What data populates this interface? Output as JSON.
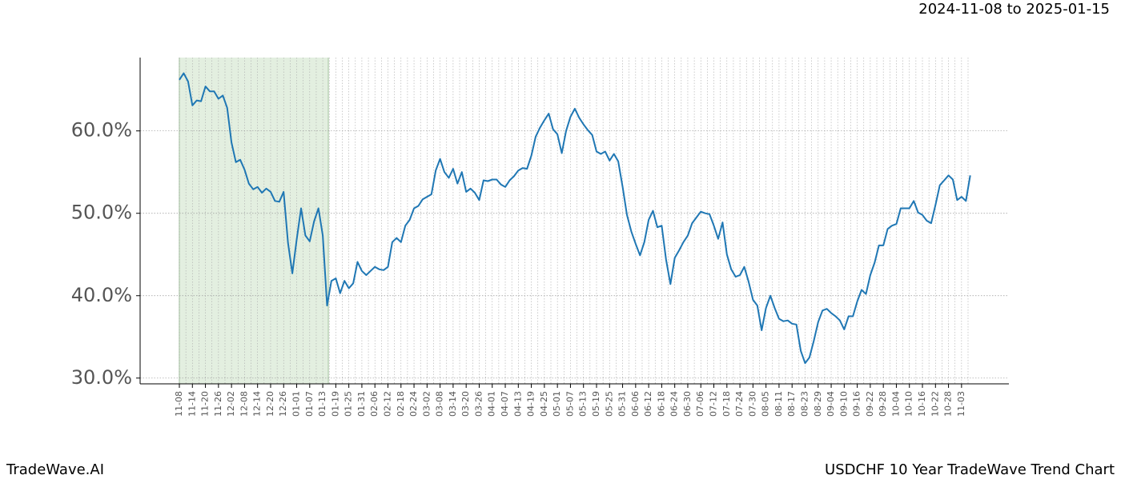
{
  "chart_data": {
    "type": "line",
    "date_range": "2024-11-08 to 2025-01-15",
    "brand": "TradeWave.AI",
    "title": "USDCHF 10 Year TradeWave Trend Chart",
    "categories": [
      "11-08",
      null,
      null,
      "11-14",
      null,
      null,
      "11-20",
      null,
      null,
      "11-26",
      null,
      null,
      "12-02",
      null,
      null,
      "12-08",
      null,
      null,
      "12-14",
      null,
      null,
      "12-20",
      null,
      null,
      "12-26",
      null,
      null,
      "01-01",
      null,
      null,
      "01-07",
      null,
      null,
      "01-13",
      null,
      null,
      "01-19",
      null,
      null,
      "01-25",
      null,
      null,
      "01-31",
      null,
      null,
      "02-06",
      null,
      null,
      "02-12",
      null,
      null,
      "02-18",
      null,
      null,
      "02-24",
      null,
      null,
      "03-02",
      null,
      null,
      "03-08",
      null,
      null,
      "03-14",
      null,
      null,
      "03-20",
      null,
      null,
      "03-26",
      null,
      null,
      "04-01",
      null,
      null,
      "04-07",
      null,
      null,
      "04-13",
      null,
      null,
      "04-19",
      null,
      null,
      "04-25",
      null,
      null,
      "05-01",
      null,
      null,
      "05-07",
      null,
      null,
      "05-13",
      null,
      null,
      "05-19",
      null,
      null,
      "05-25",
      null,
      null,
      "05-31",
      null,
      null,
      "06-06",
      null,
      null,
      "06-12",
      null,
      null,
      "06-18",
      null,
      null,
      "06-24",
      null,
      null,
      "06-30",
      null,
      null,
      "07-06",
      null,
      null,
      "07-12",
      null,
      null,
      "07-18",
      null,
      null,
      "07-24",
      null,
      null,
      "07-30",
      null,
      null,
      "08-05",
      null,
      null,
      "08-11",
      null,
      null,
      "08-17",
      null,
      null,
      "08-23",
      null,
      null,
      "08-29",
      null,
      null,
      "09-04",
      null,
      null,
      "09-10",
      null,
      null,
      "09-16",
      null,
      null,
      "09-22",
      null,
      null,
      "09-28",
      null,
      null,
      "10-04",
      null,
      null,
      "10-10",
      null,
      null,
      "10-16",
      null,
      null,
      "10-22",
      null,
      null,
      "10-28",
      null,
      null,
      "11-03",
      null,
      null
    ],
    "series": [
      {
        "color": "#1f77b4",
        "values": [
          66.2,
          67.0,
          66.0,
          63.1,
          63.7,
          63.6,
          65.4,
          64.8,
          64.8,
          63.9,
          64.3,
          62.8,
          58.6,
          56.2,
          56.5,
          55.3,
          53.6,
          52.9,
          53.2,
          52.5,
          53.0,
          52.6,
          51.5,
          51.4,
          52.6,
          46.4,
          42.7,
          46.8,
          50.6,
          47.3,
          46.6,
          49.0,
          50.6,
          47.3,
          38.8,
          41.8,
          42.1,
          40.3,
          41.8,
          40.9,
          41.5,
          44.1,
          43.0,
          42.5,
          43.0,
          43.5,
          43.2,
          43.1,
          43.5,
          46.5,
          47.0,
          46.5,
          48.5,
          49.2,
          50.6,
          50.9,
          51.7,
          52.0,
          52.3,
          55.2,
          56.6,
          55.0,
          54.3,
          55.4,
          53.6,
          55.0,
          52.6,
          53.0,
          52.5,
          51.6,
          54.0,
          53.9,
          54.1,
          54.1,
          53.5,
          53.2,
          54.0,
          54.5,
          55.2,
          55.5,
          55.4,
          57.0,
          59.3,
          60.4,
          61.3,
          62.1,
          60.2,
          59.6,
          57.3,
          60.0,
          61.7,
          62.7,
          61.6,
          60.8,
          60.1,
          59.5,
          57.5,
          57.2,
          57.5,
          56.4,
          57.2,
          56.3,
          53.2,
          49.8,
          47.8,
          46.3,
          44.9,
          46.5,
          49.2,
          50.3,
          48.3,
          48.5,
          44.4,
          41.4,
          44.6,
          45.5,
          46.5,
          47.3,
          48.8,
          49.5,
          50.2,
          50.0,
          49.9,
          48.5,
          46.9,
          48.9,
          45.0,
          43.2,
          42.3,
          42.5,
          43.5,
          41.7,
          39.5,
          38.8,
          35.8,
          38.5,
          40.0,
          38.5,
          37.2,
          36.9,
          37.0,
          36.6,
          36.5,
          33.3,
          31.8,
          32.5,
          34.5,
          36.8,
          38.2,
          38.4,
          37.9,
          37.5,
          37.0,
          35.9,
          37.5,
          37.5,
          39.3,
          40.7,
          40.2,
          42.5,
          44.0,
          46.1,
          46.1,
          48.1,
          48.5,
          48.7,
          50.6,
          50.6,
          50.6,
          51.5,
          50.1,
          49.8,
          49.1,
          48.8,
          51.0,
          53.4,
          54.0,
          54.6,
          54.1,
          51.6,
          52.0,
          51.5,
          54.6
        ]
      }
    ],
    "ylim": [
      29.3,
      68.9
    ],
    "yticks": [
      {
        "value": 30,
        "label": "30.0%"
      },
      {
        "value": 40,
        "label": "40.0%"
      },
      {
        "value": 50,
        "label": "50.0%"
      },
      {
        "value": 60,
        "label": "60.0%"
      }
    ],
    "grid": true,
    "shaded": {
      "start": 0,
      "end": 34,
      "color": "#e3efe0"
    }
  }
}
